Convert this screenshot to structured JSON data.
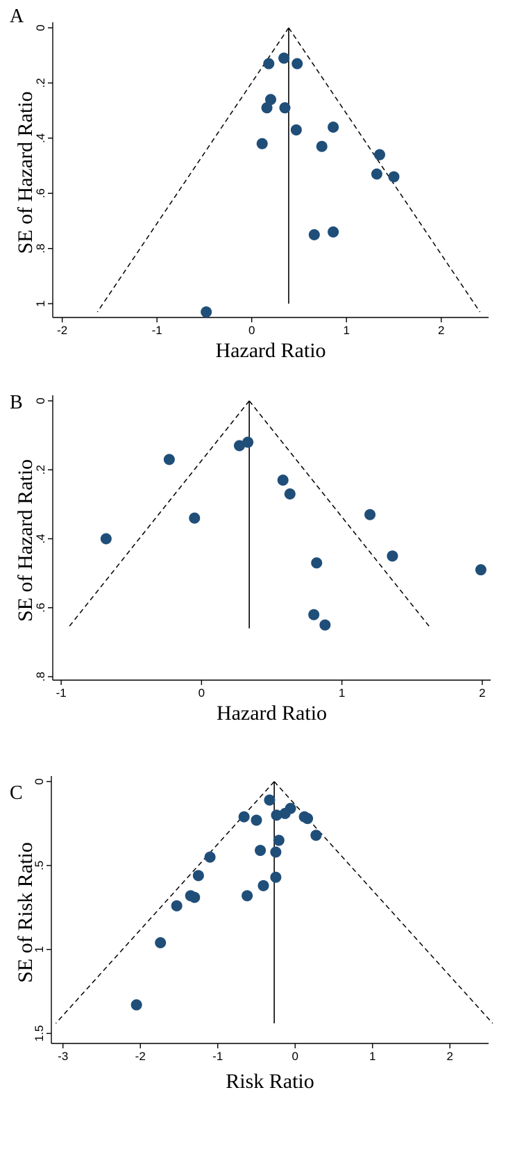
{
  "chart_data": [
    {
      "type": "scatter",
      "panel": "A",
      "title": "",
      "xlabel": "Hazard Ratio",
      "ylabel": "SE of Hazard Ratio",
      "xlim": [
        -2.1,
        2.5
      ],
      "ylim": [
        1.05,
        0
      ],
      "x_ticks": [
        -2,
        -1,
        0,
        1,
        2
      ],
      "x_tick_labels": [
        "-2",
        "-1",
        "0",
        "1",
        "2"
      ],
      "y_ticks": [
        0,
        0.2,
        0.4,
        0.6,
        0.8,
        1
      ],
      "y_tick_labels": [
        "0",
        ".2",
        ".4",
        ".6",
        ".8",
        "1"
      ],
      "pooled_estimate": 0.39,
      "pooled_line_max_se": 1.0,
      "funnel_max_se": 1.03,
      "series": [
        {
          "x": [
            0.34,
            0.18,
            0.48,
            0.2,
            0.16,
            0.35,
            0.47,
            0.86,
            0.11,
            0.74,
            1.35,
            1.32,
            1.5,
            0.66,
            0.86,
            -0.48
          ],
          "y": [
            0.11,
            0.13,
            0.13,
            0.26,
            0.29,
            0.29,
            0.37,
            0.36,
            0.42,
            0.43,
            0.46,
            0.53,
            0.54,
            0.75,
            0.74,
            1.03
          ]
        }
      ]
    },
    {
      "type": "scatter",
      "panel": "B",
      "title": "",
      "xlabel": "Hazard Ratio",
      "ylabel": "SE of Hazard Ratio",
      "xlim": [
        -1.06,
        2.06
      ],
      "ylim": [
        0.81,
        0
      ],
      "x_ticks": [
        -1,
        0,
        1,
        2
      ],
      "x_tick_labels": [
        "-1",
        "0",
        "1",
        "2"
      ],
      "y_ticks": [
        0,
        0.2,
        0.4,
        0.6,
        0.8
      ],
      "y_tick_labels": [
        "0",
        ".2",
        ".4",
        ".6",
        ".8"
      ],
      "pooled_estimate": 0.34,
      "pooled_line_max_se": 0.66,
      "funnel_max_se": 0.66,
      "series": [
        {
          "x": [
            0.33,
            0.27,
            -0.23,
            0.58,
            0.63,
            1.2,
            -0.05,
            -0.68,
            1.36,
            0.82,
            1.99,
            0.8,
            0.88
          ],
          "y": [
            0.12,
            0.13,
            0.17,
            0.23,
            0.27,
            0.33,
            0.34,
            0.4,
            0.45,
            0.47,
            0.49,
            0.62,
            0.65
          ]
        }
      ]
    },
    {
      "type": "scatter",
      "panel": "C",
      "title": "",
      "xlabel": "Risk Ratio",
      "ylabel": "SE of Risk Ratio",
      "xlim": [
        -3.15,
        2.5
      ],
      "ylim": [
        1.56,
        0
      ],
      "x_ticks": [
        -3,
        -2,
        -1,
        0,
        1,
        2
      ],
      "x_tick_labels": [
        "-3",
        "-2",
        "-1",
        "0",
        "1",
        "2"
      ],
      "y_ticks": [
        0,
        0.5,
        1,
        1.5
      ],
      "y_tick_labels": [
        "0",
        ".5",
        "1",
        "1.5"
      ],
      "pooled_estimate": -0.27,
      "pooled_line_max_se": 1.44,
      "funnel_max_se": 1.44,
      "series": [
        {
          "x": [
            -0.33,
            -0.06,
            -0.13,
            -0.66,
            -0.5,
            -0.24,
            0.12,
            0.16,
            0.27,
            -0.21,
            -0.45,
            -0.25,
            -1.1,
            -1.25,
            -0.25,
            -0.41,
            -1.35,
            -1.3,
            -0.62,
            -1.53,
            -1.74,
            -2.05
          ],
          "y": [
            0.11,
            0.16,
            0.19,
            0.21,
            0.23,
            0.2,
            0.21,
            0.22,
            0.32,
            0.35,
            0.41,
            0.42,
            0.45,
            0.56,
            0.57,
            0.62,
            0.68,
            0.69,
            0.68,
            0.74,
            0.96,
            1.33
          ]
        }
      ]
    }
  ]
}
